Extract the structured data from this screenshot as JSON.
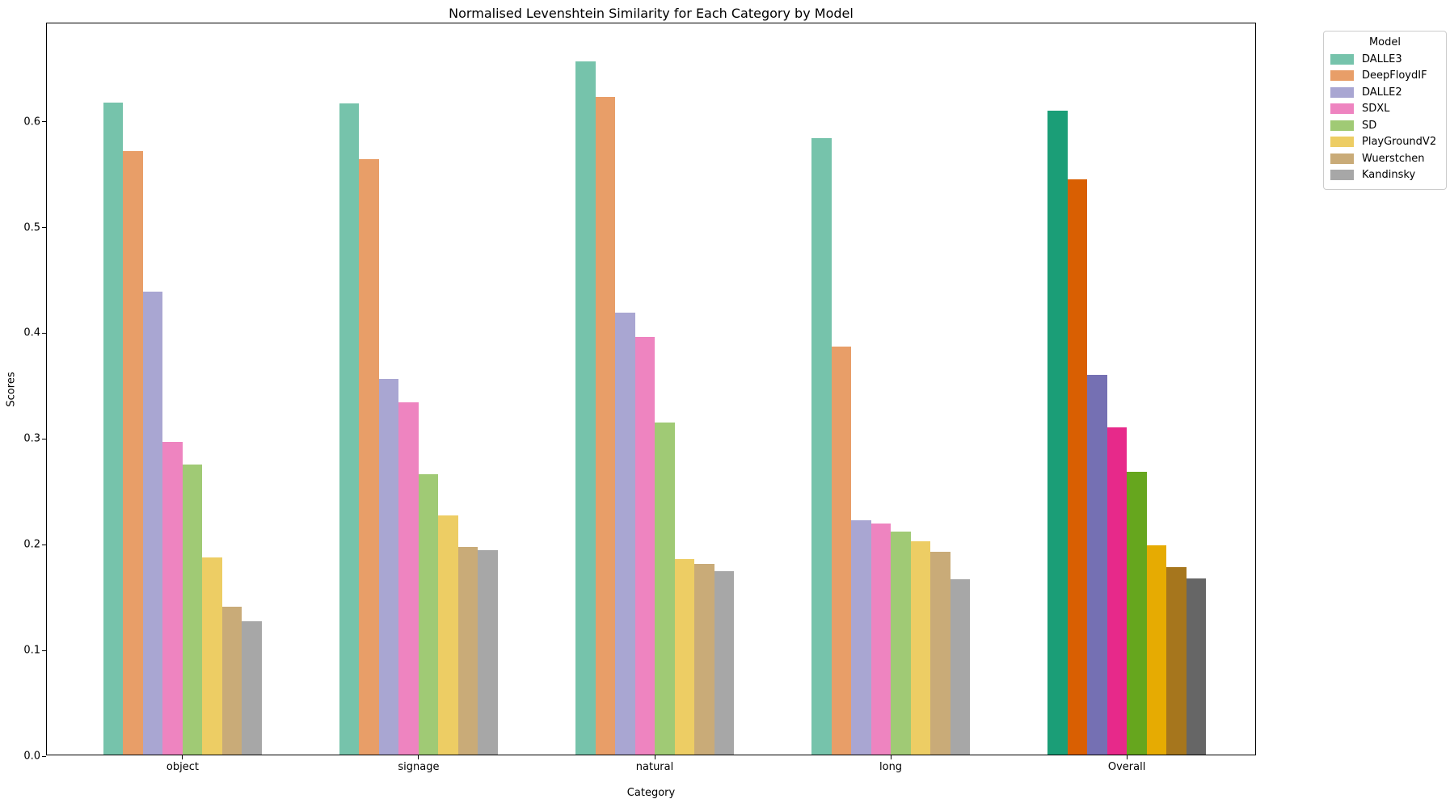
{
  "chart_data": {
    "type": "bar",
    "title": "Normalised Levenshtein Similarity for Each Category by Model",
    "xlabel": "Category",
    "ylabel": "Scores",
    "categories": [
      "object",
      "signage",
      "natural",
      "long",
      "Overall"
    ],
    "overall_category": "Overall",
    "series": [
      {
        "name": "DALLE3",
        "color": "#76c3ab",
        "overall_color": "#1b9e77",
        "values": [
          0.618,
          0.617,
          0.657,
          0.584,
          0.61
        ]
      },
      {
        "name": "DeepFloydIF",
        "color": "#e89e68",
        "overall_color": "#d95f02",
        "values": [
          0.572,
          0.564,
          0.623,
          0.387,
          0.545
        ]
      },
      {
        "name": "DALLE2",
        "color": "#a9a6d2",
        "overall_color": "#7570b3",
        "values": [
          0.439,
          0.356,
          0.419,
          0.222,
          0.36
        ]
      },
      {
        "name": "SDXL",
        "color": "#ee84c0",
        "overall_color": "#e7298a",
        "values": [
          0.296,
          0.334,
          0.396,
          0.219,
          0.31
        ]
      },
      {
        "name": "SD",
        "color": "#a0ca75",
        "overall_color": "#66a61e",
        "values": [
          0.275,
          0.266,
          0.315,
          0.211,
          0.268
        ]
      },
      {
        "name": "PlayGroundV2",
        "color": "#edcd64",
        "overall_color": "#e6ab02",
        "values": [
          0.187,
          0.227,
          0.185,
          0.202,
          0.198
        ]
      },
      {
        "name": "Wuerstchen",
        "color": "#c9ab78",
        "overall_color": "#a6761d",
        "values": [
          0.14,
          0.197,
          0.181,
          0.192,
          0.178
        ]
      },
      {
        "name": "Kandinsky",
        "color": "#a7a7a7",
        "overall_color": "#666666",
        "values": [
          0.126,
          0.194,
          0.174,
          0.166,
          0.167
        ]
      }
    ],
    "yticks": [
      "0.0",
      "0.1",
      "0.2",
      "0.3",
      "0.4",
      "0.5",
      "0.6"
    ],
    "ylim": [
      0.0,
      0.693
    ],
    "grid": false,
    "legend": {
      "title": "Model",
      "position": "outside-upper-right"
    }
  }
}
